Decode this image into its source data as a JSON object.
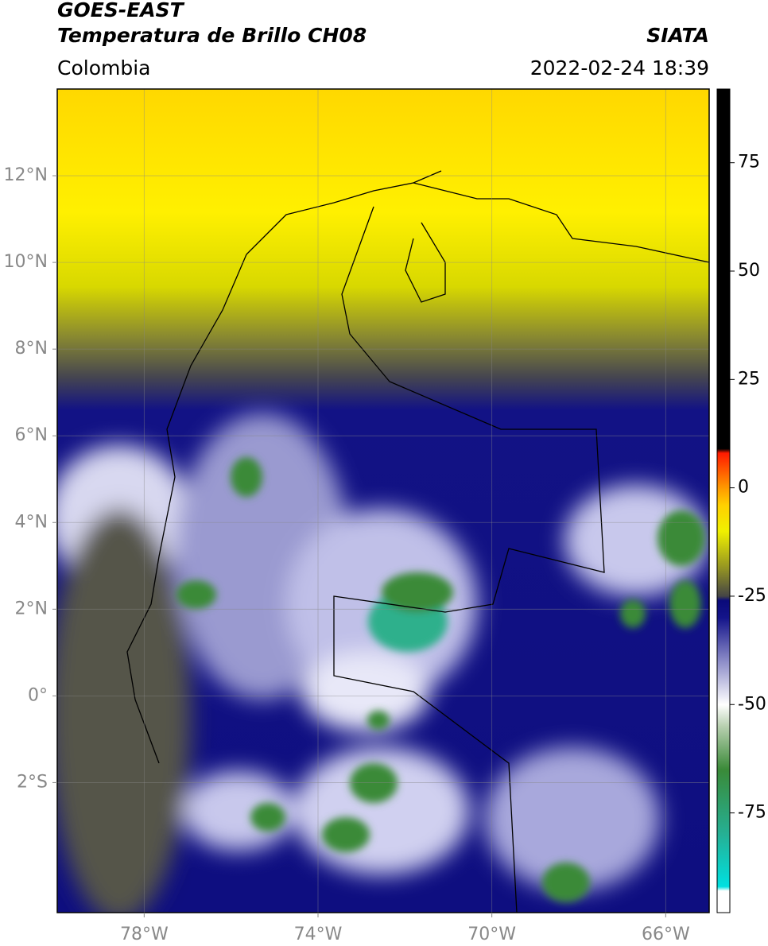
{
  "header": {
    "title": "GOES-EAST",
    "subtitle": "Temperatura de Brillo CH08",
    "source": "SIATA",
    "region": "Colombia",
    "datetime": "2022-02-24 18:39"
  },
  "map": {
    "lonlim": [
      -80,
      -65
    ],
    "latlim": [
      -5,
      14
    ],
    "grid": true,
    "lonticks": [
      {
        "value": -78,
        "label": "78°W"
      },
      {
        "value": -74,
        "label": "74°W"
      },
      {
        "value": -70,
        "label": "70°W"
      },
      {
        "value": -66,
        "label": "66°W"
      }
    ],
    "latticks": [
      {
        "value": 12,
        "label": "12°N"
      },
      {
        "value": 10,
        "label": "10°N"
      },
      {
        "value": 8,
        "label": "8°N"
      },
      {
        "value": 6,
        "label": "6°N"
      },
      {
        "value": 4,
        "label": "4°N"
      },
      {
        "value": 2,
        "label": "2°N"
      },
      {
        "value": 0,
        "label": "0°"
      },
      {
        "value": -2,
        "label": "2°S"
      }
    ]
  },
  "colorbar": {
    "lim": [
      -98,
      92
    ],
    "ticks": [
      75,
      50,
      25,
      0,
      -25,
      -50,
      -75
    ],
    "stops": [
      {
        "value": -98,
        "color": "#ffffff"
      },
      {
        "value": -93,
        "color": "#ffffff"
      },
      {
        "value": -92,
        "color": "#00e0e0"
      },
      {
        "value": -80,
        "color": "#25b095"
      },
      {
        "value": -65,
        "color": "#3a8a38"
      },
      {
        "value": -55,
        "color": "#b8d0b0"
      },
      {
        "value": -50,
        "color": "#ffffff"
      },
      {
        "value": -40,
        "color": "#8c8cc8"
      },
      {
        "value": -30,
        "color": "#14148a"
      },
      {
        "value": -26,
        "color": "#0a0a7a"
      },
      {
        "value": -25,
        "color": "#454545"
      },
      {
        "value": -18,
        "color": "#9a9a20"
      },
      {
        "value": -10,
        "color": "#f0f000"
      },
      {
        "value": -4,
        "color": "#ffd000"
      },
      {
        "value": 0,
        "color": "#ff9900"
      },
      {
        "value": 8,
        "color": "#ff1a00"
      },
      {
        "value": 9,
        "color": "#000000"
      },
      {
        "value": 92,
        "color": "#000000"
      }
    ]
  }
}
